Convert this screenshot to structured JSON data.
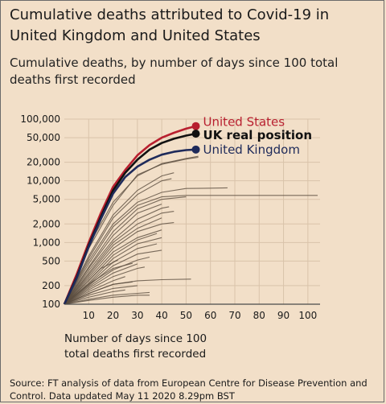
{
  "title": "Cumulative deaths attributed to Covid-19 in United Kingdom and United States",
  "subtitle": "Cumulative deaths, by number of days since 100 total deaths first recorded",
  "source": "Source: FT analysis of data from European Centre for Disease Prevention and Control. Data updated May 11 2020 8.29pm BST",
  "colors": {
    "us": "#b81f2f",
    "uk": "#1e2a5a",
    "uk_real": "#111111",
    "others": "#5a4c3e",
    "background": "#f2dfc8"
  },
  "chart_data": {
    "type": "line",
    "scale": "log",
    "xlabel": "Number of days since 100\ntotal deaths first recorded",
    "ylabel": "",
    "xlim": [
      0,
      105
    ],
    "ylim": [
      100,
      100000
    ],
    "x_ticks": [
      10,
      20,
      30,
      40,
      50,
      60,
      70,
      80,
      90,
      100
    ],
    "y_ticks": [
      100,
      200,
      500,
      1000,
      2000,
      5000,
      10000,
      20000,
      50000,
      100000
    ],
    "y_tick_labels": [
      "100",
      "200",
      "500",
      "1,000",
      "2,000",
      "5,000",
      "10,000",
      "20,000",
      "50,000",
      "100,000"
    ],
    "series": [
      {
        "name": "United States",
        "highlight": true,
        "points": [
          [
            0,
            100
          ],
          [
            5,
            300
          ],
          [
            10,
            1000
          ],
          [
            15,
            3000
          ],
          [
            20,
            8000
          ],
          [
            25,
            15000
          ],
          [
            30,
            26000
          ],
          [
            35,
            38000
          ],
          [
            40,
            50000
          ],
          [
            45,
            60000
          ],
          [
            50,
            70000
          ],
          [
            54,
            77000
          ]
        ]
      },
      {
        "name": "UK real position",
        "highlight": true,
        "points": [
          [
            0,
            100
          ],
          [
            5,
            270
          ],
          [
            10,
            900
          ],
          [
            15,
            2600
          ],
          [
            20,
            7000
          ],
          [
            25,
            13500
          ],
          [
            30,
            22000
          ],
          [
            35,
            32000
          ],
          [
            40,
            41000
          ],
          [
            45,
            48000
          ],
          [
            50,
            54000
          ],
          [
            54,
            58000
          ]
        ]
      },
      {
        "name": "United Kingdom",
        "highlight": true,
        "points": [
          [
            0,
            100
          ],
          [
            5,
            260
          ],
          [
            10,
            850
          ],
          [
            15,
            2400
          ],
          [
            20,
            6200
          ],
          [
            25,
            11500
          ],
          [
            30,
            17000
          ],
          [
            35,
            22000
          ],
          [
            40,
            26500
          ],
          [
            45,
            29500
          ],
          [
            50,
            31500
          ],
          [
            54,
            32100
          ]
        ]
      }
    ],
    "other_countries": [
      [
        [
          0,
          100
        ],
        [
          10,
          900
        ],
        [
          20,
          4500
        ],
        [
          30,
          12000
        ],
        [
          40,
          19000
        ],
        [
          50,
          23000
        ],
        [
          55,
          25000
        ]
      ],
      [
        [
          0,
          100
        ],
        [
          10,
          800
        ],
        [
          20,
          4000
        ],
        [
          30,
          12500
        ],
        [
          40,
          18500
        ],
        [
          50,
          22500
        ],
        [
          55,
          24000
        ]
      ],
      [
        [
          0,
          100
        ],
        [
          10,
          600
        ],
        [
          20,
          2800
        ],
        [
          30,
          7000
        ],
        [
          40,
          12000
        ],
        [
          45,
          13500
        ]
      ],
      [
        [
          0,
          100
        ],
        [
          10,
          550
        ],
        [
          20,
          2500
        ],
        [
          30,
          6000
        ],
        [
          40,
          10000
        ],
        [
          44,
          10800
        ]
      ],
      [
        [
          0,
          100
        ],
        [
          10,
          500
        ],
        [
          20,
          2000
        ],
        [
          30,
          4500
        ],
        [
          40,
          6500
        ],
        [
          50,
          7500
        ],
        [
          60,
          7600
        ],
        [
          67,
          7700
        ]
      ],
      [
        [
          0,
          100
        ],
        [
          10,
          450
        ],
        [
          20,
          1800
        ],
        [
          30,
          4000
        ],
        [
          40,
          5500
        ],
        [
          50,
          5800
        ],
        [
          60,
          5800
        ],
        [
          70,
          5800
        ],
        [
          80,
          5800
        ],
        [
          90,
          5800
        ],
        [
          104,
          5800
        ]
      ],
      [
        [
          0,
          100
        ],
        [
          10,
          400
        ],
        [
          20,
          1500
        ],
        [
          30,
          3500
        ],
        [
          40,
          5000
        ],
        [
          50,
          5500
        ]
      ],
      [
        [
          0,
          100
        ],
        [
          10,
          380
        ],
        [
          20,
          1300
        ],
        [
          30,
          3000
        ],
        [
          40,
          4200
        ]
      ],
      [
        [
          0,
          100
        ],
        [
          10,
          350
        ],
        [
          20,
          1100
        ],
        [
          30,
          2400
        ],
        [
          40,
          3600
        ],
        [
          43,
          3800
        ]
      ],
      [
        [
          0,
          100
        ],
        [
          10,
          320
        ],
        [
          20,
          1000
        ],
        [
          30,
          2000
        ],
        [
          40,
          3000
        ],
        [
          45,
          3200
        ]
      ],
      [
        [
          0,
          100
        ],
        [
          10,
          300
        ],
        [
          20,
          900
        ],
        [
          30,
          1700
        ],
        [
          40,
          2500
        ]
      ],
      [
        [
          0,
          100
        ],
        [
          10,
          280
        ],
        [
          20,
          800
        ],
        [
          30,
          1500
        ],
        [
          40,
          2000
        ],
        [
          45,
          2100
        ]
      ],
      [
        [
          0,
          100
        ],
        [
          10,
          260
        ],
        [
          20,
          700
        ],
        [
          30,
          1200
        ],
        [
          40,
          1600
        ]
      ],
      [
        [
          0,
          100
        ],
        [
          10,
          240
        ],
        [
          20,
          620
        ],
        [
          30,
          1100
        ],
        [
          38,
          1400
        ]
      ],
      [
        [
          0,
          100
        ],
        [
          10,
          220
        ],
        [
          20,
          550
        ],
        [
          30,
          950
        ],
        [
          40,
          1200
        ]
      ],
      [
        [
          0,
          100
        ],
        [
          10,
          210
        ],
        [
          20,
          480
        ],
        [
          30,
          800
        ],
        [
          38,
          950
        ]
      ],
      [
        [
          0,
          100
        ],
        [
          10,
          200
        ],
        [
          20,
          420
        ],
        [
          30,
          650
        ],
        [
          40,
          750
        ]
      ],
      [
        [
          0,
          100
        ],
        [
          10,
          190
        ],
        [
          20,
          360
        ],
        [
          30,
          520
        ],
        [
          35,
          580
        ]
      ],
      [
        [
          0,
          100
        ],
        [
          10,
          180
        ],
        [
          20,
          320
        ],
        [
          30,
          450
        ]
      ],
      [
        [
          0,
          100
        ],
        [
          10,
          170
        ],
        [
          20,
          280
        ],
        [
          30,
          380
        ],
        [
          33,
          400
        ]
      ],
      [
        [
          0,
          100
        ],
        [
          10,
          160
        ],
        [
          20,
          240
        ],
        [
          25,
          280
        ]
      ],
      [
        [
          0,
          100
        ],
        [
          10,
          150
        ],
        [
          20,
          210
        ],
        [
          30,
          240
        ],
        [
          40,
          250
        ],
        [
          52,
          255
        ]
      ],
      [
        [
          0,
          100
        ],
        [
          10,
          140
        ],
        [
          20,
          180
        ],
        [
          30,
          200
        ]
      ],
      [
        [
          0,
          100
        ],
        [
          10,
          130
        ],
        [
          20,
          160
        ],
        [
          25,
          170
        ]
      ],
      [
        [
          0,
          100
        ],
        [
          10,
          120
        ],
        [
          20,
          140
        ],
        [
          30,
          150
        ],
        [
          35,
          155
        ]
      ],
      [
        [
          0,
          100
        ],
        [
          10,
          115
        ],
        [
          20,
          130
        ],
        [
          30,
          140
        ],
        [
          35,
          140
        ]
      ],
      [
        [
          0,
          100
        ],
        [
          12,
          160
        ],
        [
          20,
          210
        ],
        [
          28,
          230
        ]
      ],
      [
        [
          0,
          100
        ],
        [
          8,
          200
        ],
        [
          15,
          380
        ],
        [
          22,
          520
        ]
      ],
      [
        [
          0,
          100
        ],
        [
          10,
          210
        ],
        [
          20,
          380
        ],
        [
          28,
          460
        ]
      ]
    ]
  }
}
